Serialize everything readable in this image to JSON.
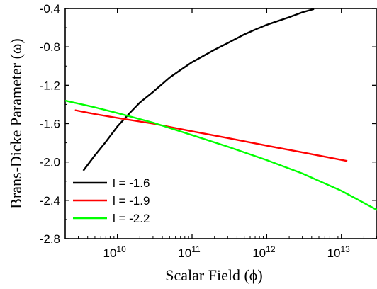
{
  "chart_data": {
    "type": "line",
    "title": "",
    "xlabel": "Scalar Field (ϕ)",
    "ylabel": "Brans-Dicke Parameter (ω)",
    "x_scale": "log",
    "xlim": [
      2000000000.0,
      30000000000000.0
    ],
    "ylim": [
      -2.8,
      -0.4
    ],
    "x_ticks": [
      {
        "value": 10000000000.0,
        "base": "10",
        "exp": "10"
      },
      {
        "value": 100000000000.0,
        "base": "10",
        "exp": "11"
      },
      {
        "value": 1000000000000.0,
        "base": "10",
        "exp": "12"
      },
      {
        "value": 10000000000000.0,
        "base": "10",
        "exp": "13"
      }
    ],
    "y_ticks": [
      -0.4,
      -0.8,
      -1.2,
      -1.6,
      -2.0,
      -2.4,
      -2.8
    ],
    "grid": false,
    "legend_position": "bottom-left",
    "series": [
      {
        "name": "l = -1.6",
        "color": "#000000",
        "points": [
          [
            3500000000.0,
            -2.09
          ],
          [
            5000000000.0,
            -1.93
          ],
          [
            7000000000.0,
            -1.79
          ],
          [
            10000000000.0,
            -1.63
          ],
          [
            15000000000.0,
            -1.48
          ],
          [
            20000000000.0,
            -1.38
          ],
          [
            30000000000.0,
            -1.27
          ],
          [
            50000000000.0,
            -1.12
          ],
          [
            70000000000.0,
            -1.04
          ],
          [
            100000000000.0,
            -0.96
          ],
          [
            200000000000.0,
            -0.83
          ],
          [
            300000000000.0,
            -0.76
          ],
          [
            500000000000.0,
            -0.67
          ],
          [
            700000000000.0,
            -0.62
          ],
          [
            1000000000000.0,
            -0.57
          ],
          [
            2000000000000.0,
            -0.49
          ],
          [
            3000000000000.0,
            -0.44
          ],
          [
            4300000000000.0,
            -0.405
          ]
        ]
      },
      {
        "name": "l = -1.9",
        "color": "#ff0000",
        "points": [
          [
            2700000000.0,
            -1.46
          ],
          [
            5000000000.0,
            -1.5
          ],
          [
            10000000000.0,
            -1.54
          ],
          [
            30000000000.0,
            -1.6
          ],
          [
            100000000000.0,
            -1.68
          ],
          [
            300000000000.0,
            -1.75
          ],
          [
            1000000000000.0,
            -1.83
          ],
          [
            3000000000000.0,
            -1.9
          ],
          [
            12000000000000.0,
            -1.99
          ]
        ]
      },
      {
        "name": "l = -2.2",
        "color": "#00ff00",
        "points": [
          [
            2000000000.0,
            -1.36
          ],
          [
            5000000000.0,
            -1.43
          ],
          [
            10000000000.0,
            -1.49
          ],
          [
            30000000000.0,
            -1.59
          ],
          [
            100000000000.0,
            -1.72
          ],
          [
            300000000000.0,
            -1.84
          ],
          [
            1000000000000.0,
            -1.98
          ],
          [
            3000000000000.0,
            -2.12
          ],
          [
            10000000000000.0,
            -2.3
          ],
          [
            30000000000000.0,
            -2.5
          ]
        ]
      }
    ]
  }
}
